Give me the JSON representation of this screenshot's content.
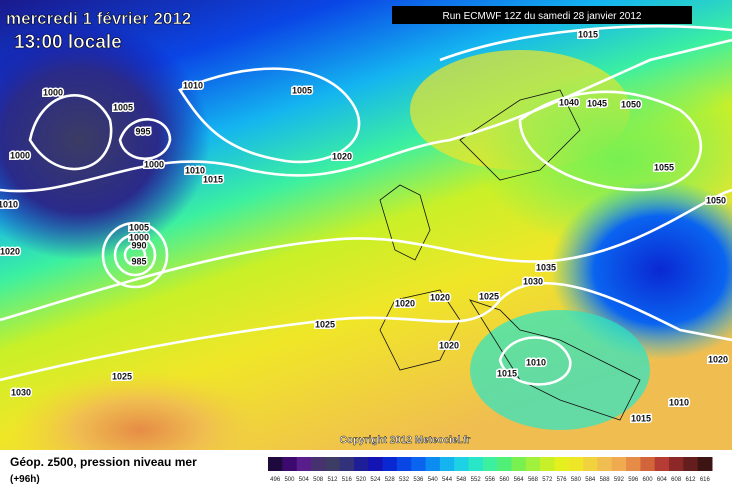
{
  "header": {
    "date": "mercredi 1 février 2012",
    "time": "13:00 locale",
    "run": "Run ECMWF 12Z du samedi 28 janvier 2012"
  },
  "copyright": "Copyright 2012 Meteociel.fr",
  "footer": {
    "title": "Géop. z500, pression niveau mer",
    "lead": "(+96h)"
  },
  "isobar_labels": [
    "1015",
    "1040",
    "1045",
    "1050",
    "1055",
    "1050",
    "1035",
    "1030",
    "1025",
    "1020",
    "1020",
    "1020",
    "1025",
    "1010",
    "1015",
    "1020",
    "1010",
    "1015",
    "1025",
    "1030",
    "1020",
    "1005",
    "1010",
    "1005",
    "995",
    "1000",
    "1000",
    "1000",
    "1010",
    "1015",
    "1010",
    "1020",
    "1005",
    "1000",
    "990",
    "985"
  ],
  "legend": {
    "labels": [
      "496",
      "500",
      "504",
      "508",
      "512",
      "516",
      "520",
      "524",
      "528",
      "532",
      "536",
      "540",
      "544",
      "548",
      "552",
      "556",
      "560",
      "564",
      "568",
      "572",
      "576",
      "580",
      "584",
      "588",
      "592",
      "596",
      "600",
      "604",
      "608",
      "612",
      "616"
    ],
    "colors": [
      "#1e0a3c",
      "#3c0a6e",
      "#5a1e8c",
      "#46326e",
      "#3c3c64",
      "#32327a",
      "#1e1e96",
      "#1414b4",
      "#0a28d2",
      "#0a46e6",
      "#0a64f0",
      "#0a8cf0",
      "#14b4f0",
      "#1ed2e6",
      "#28e6c8",
      "#3cf0a0",
      "#50f078",
      "#78f050",
      "#a0f03c",
      "#c8f028",
      "#e6f01e",
      "#f0e628",
      "#f0d23c",
      "#f0be50",
      "#f0aa50",
      "#e68c46",
      "#d2643c",
      "#b43c32",
      "#8c2828",
      "#641e1e",
      "#3c1414"
    ]
  }
}
